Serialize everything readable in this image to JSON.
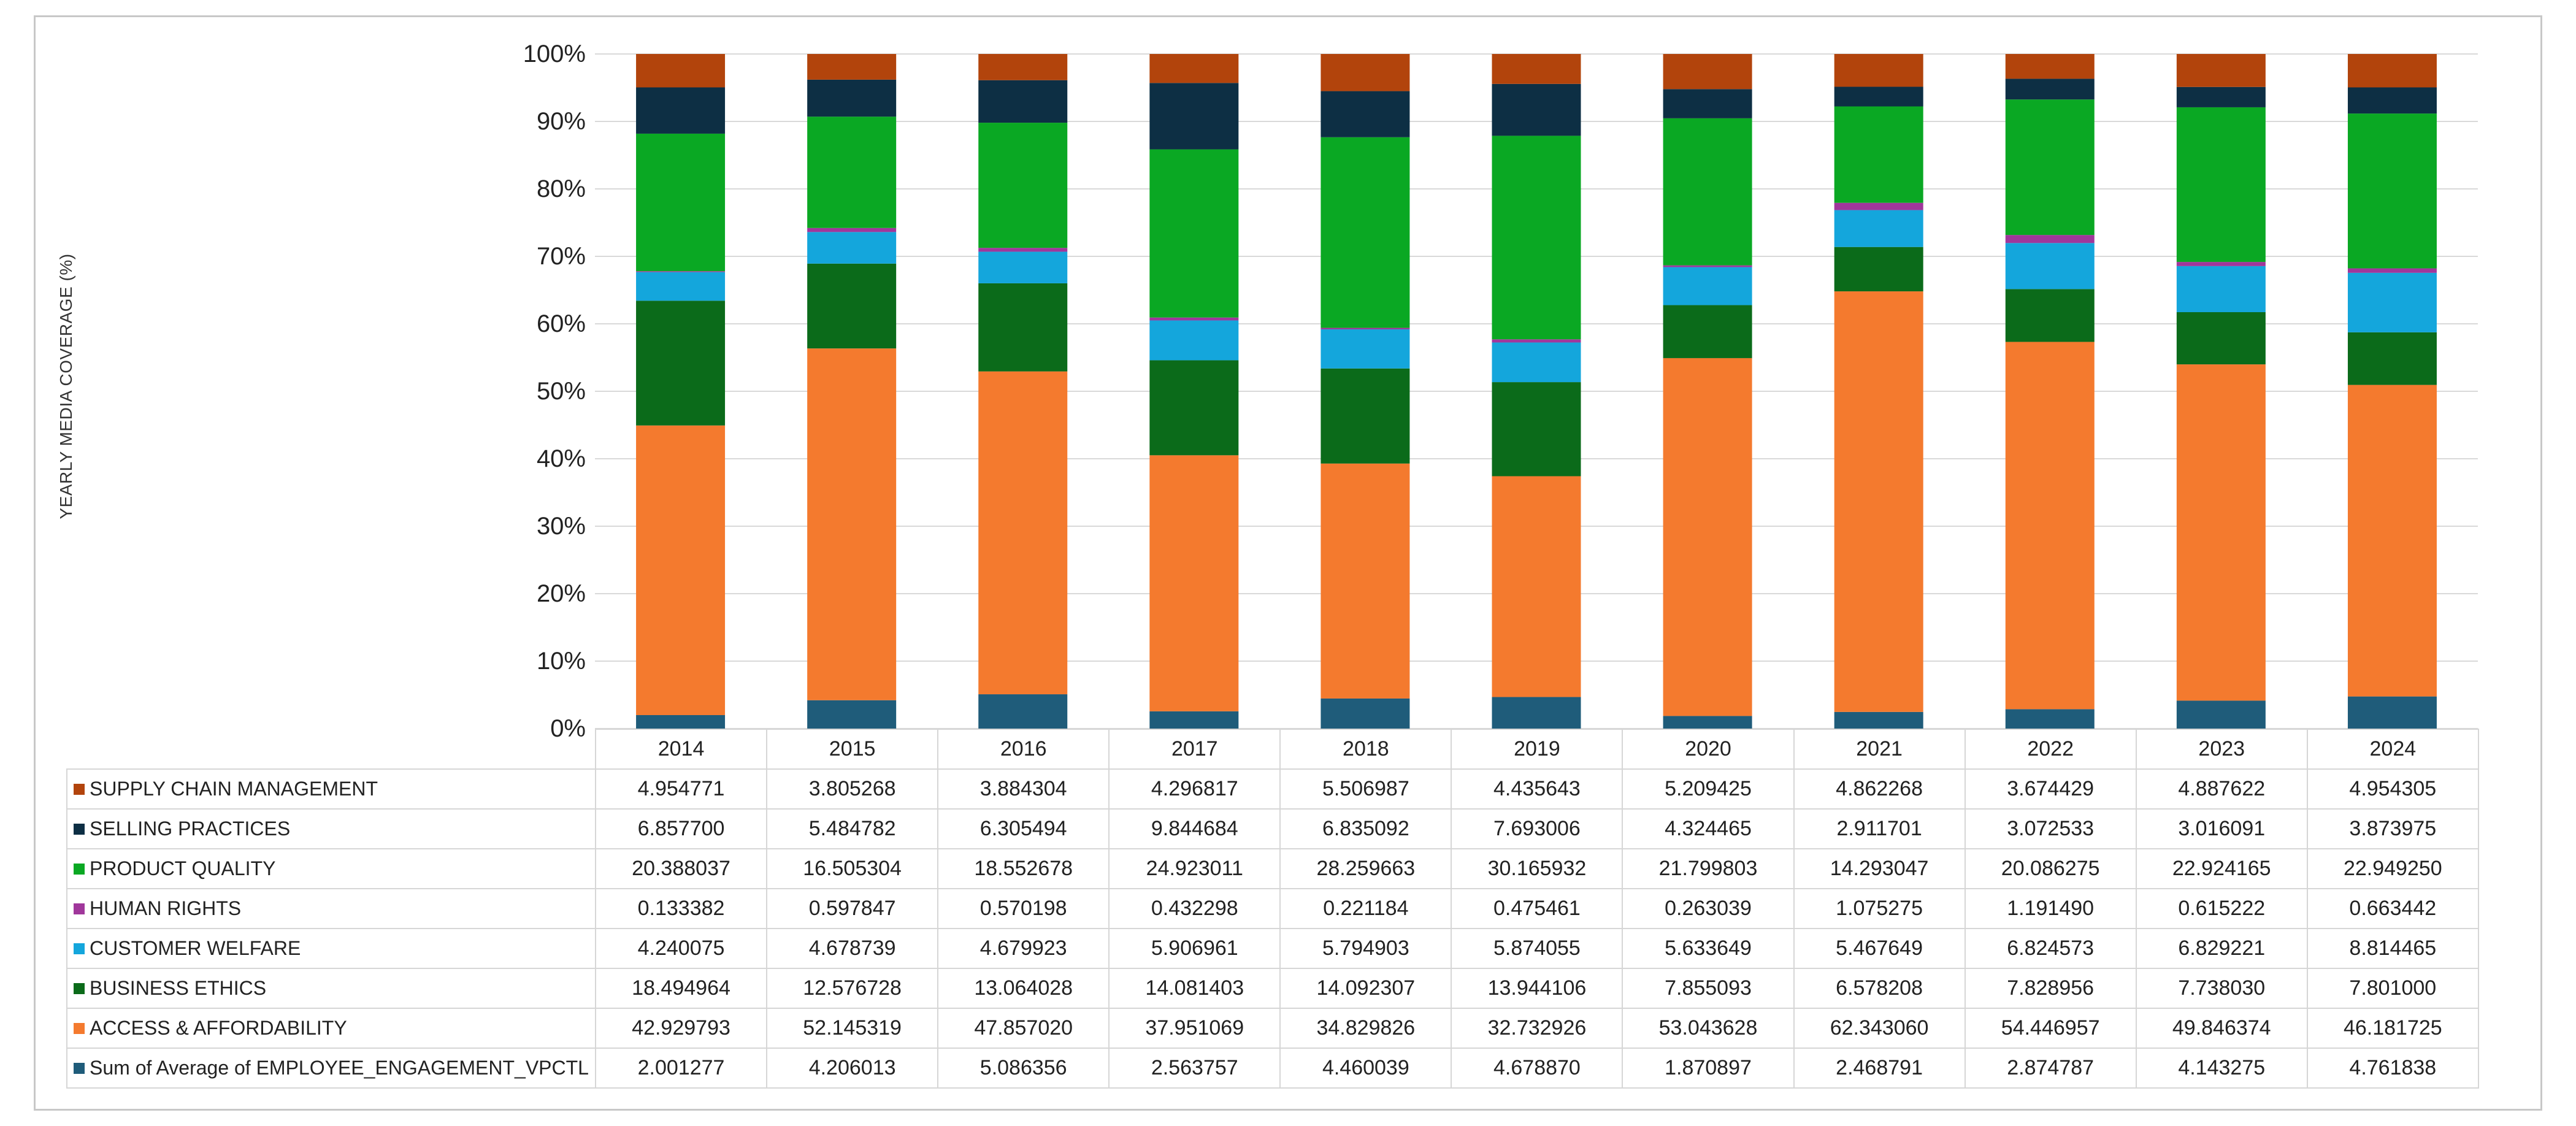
{
  "chart_data": {
    "type": "bar",
    "stacked": true,
    "percent": true,
    "title": "",
    "xlabel": "",
    "ylabel": "YEARLY MEDIA COVERAGE (%)",
    "ylim": [
      0,
      100
    ],
    "yticks": [
      "0%",
      "10%",
      "20%",
      "30%",
      "40%",
      "50%",
      "60%",
      "70%",
      "80%",
      "90%",
      "100%"
    ],
    "categories": [
      "2014",
      "2015",
      "2016",
      "2017",
      "2018",
      "2019",
      "2020",
      "2021",
      "2022",
      "2023",
      "2024"
    ],
    "series": [
      {
        "name": "Sum of Average of EMPLOYEE_ENGAGEMENT_VPCTL",
        "color": "#1f5c7a",
        "values": [
          "2.001277",
          "4.206013",
          "5.086356",
          "2.563757",
          "4.460039",
          "4.678870",
          "1.870897",
          "2.468791",
          "2.874787",
          "4.143275",
          "4.761838"
        ]
      },
      {
        "name": "ACCESS & AFFORDABILITY",
        "color": "#f47a2e",
        "values": [
          "42.929793",
          "52.145319",
          "47.857020",
          "37.951069",
          "34.829826",
          "32.732926",
          "53.043628",
          "62.343060",
          "54.446957",
          "49.846374",
          "46.181725"
        ]
      },
      {
        "name": "BUSINESS ETHICS",
        "color": "#0b6b1a",
        "values": [
          "18.494964",
          "12.576728",
          "13.064028",
          "14.081403",
          "14.092307",
          "13.944106",
          "7.855093",
          "6.578208",
          "7.828956",
          "7.738030",
          "7.801000"
        ]
      },
      {
        "name": "CUSTOMER WELFARE",
        "color": "#14a6dc",
        "values": [
          "4.240075",
          "4.678739",
          "4.679923",
          "5.906961",
          "5.794903",
          "5.874055",
          "5.633649",
          "5.467649",
          "6.824573",
          "6.829221",
          "8.814465"
        ]
      },
      {
        "name": "HUMAN RIGHTS",
        "color": "#a0379b",
        "values": [
          "0.133382",
          "0.597847",
          "0.570198",
          "0.432298",
          "0.221184",
          "0.475461",
          "0.263039",
          "1.075275",
          "1.191490",
          "0.615222",
          "0.663442"
        ]
      },
      {
        "name": "PRODUCT QUALITY",
        "color": "#0aa823",
        "values": [
          "20.388037",
          "16.505304",
          "18.552678",
          "24.923011",
          "28.259663",
          "30.165932",
          "21.799803",
          "14.293047",
          "20.086275",
          "22.924165",
          "22.949250"
        ]
      },
      {
        "name": "SELLING PRACTICES",
        "color": "#0d2f44",
        "values": [
          "6.857700",
          "5.484782",
          "6.305494",
          "9.844684",
          "6.835092",
          "7.693006",
          "4.324465",
          "2.911701",
          "3.072533",
          "3.016091",
          "3.873975"
        ]
      },
      {
        "name": "SUPPLY CHAIN MANAGEMENT",
        "color": "#b2440c",
        "values": [
          "4.954771",
          "3.805268",
          "3.884304",
          "4.296817",
          "5.506987",
          "4.435643",
          "5.209425",
          "4.862268",
          "3.674429",
          "4.887622",
          "4.954305"
        ]
      }
    ]
  }
}
